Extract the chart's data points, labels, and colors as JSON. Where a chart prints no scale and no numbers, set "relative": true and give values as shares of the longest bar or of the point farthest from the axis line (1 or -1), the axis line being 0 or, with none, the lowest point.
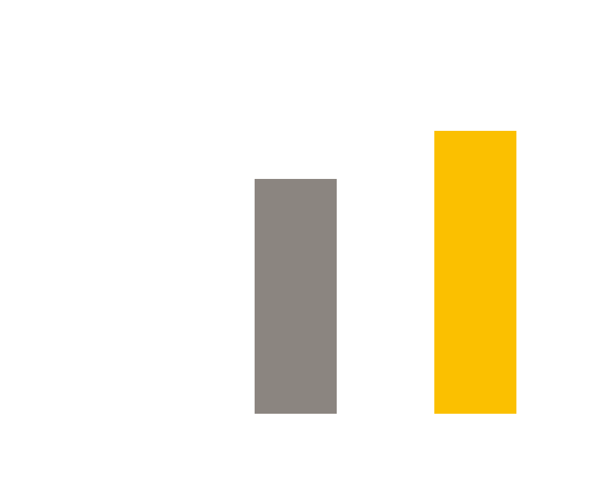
{
  "chart_data": {
    "type": "bar",
    "relative": true,
    "categories": [
      null,
      null
    ],
    "series": [
      {
        "colors": [
          "#8b8580",
          "#fbc000"
        ],
        "values": [
          0.83,
          1
        ]
      }
    ]
  }
}
